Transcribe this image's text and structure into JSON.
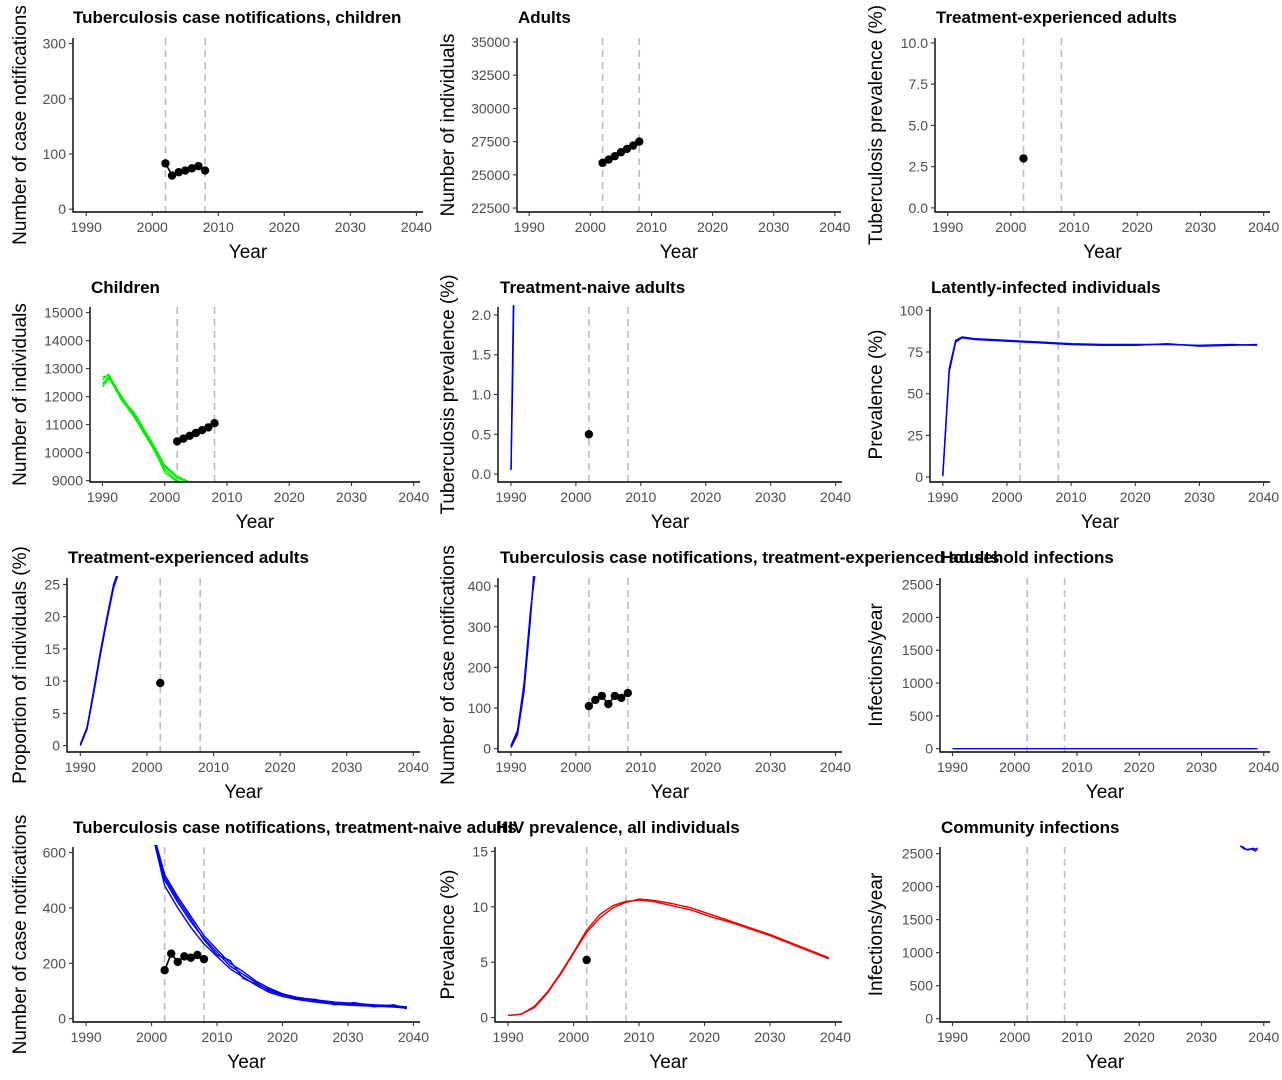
{
  "chart_data": [
    {
      "id": "p1",
      "type": "line",
      "title": "Tuberculosis case notifications, children",
      "xlabel": "Year",
      "ylabel": "Number of case notifications",
      "xlim": [
        1988,
        2041
      ],
      "ylim": [
        -5,
        310
      ],
      "xticks": [
        1990,
        2000,
        2010,
        2020,
        2030,
        2040
      ],
      "yticks": [
        0,
        100,
        200,
        300
      ],
      "vlines": [
        2002,
        2008
      ],
      "series": [],
      "observed": {
        "x": [
          2002,
          2003,
          2004,
          2005,
          2006,
          2007,
          2008
        ],
        "y": [
          83,
          61,
          67,
          70,
          74,
          78,
          70
        ]
      }
    },
    {
      "id": "p2",
      "type": "line",
      "title": "Adults",
      "xlabel": "Year",
      "ylabel": "Number of individuals",
      "xlim": [
        1988,
        2041
      ],
      "ylim": [
        22200,
        35300
      ],
      "xticks": [
        1990,
        2000,
        2010,
        2020,
        2030,
        2040
      ],
      "yticks": [
        22500,
        25000,
        27500,
        30000,
        32500,
        35000
      ],
      "vlines": [
        2002,
        2008
      ],
      "series": [],
      "observed": {
        "x": [
          2002,
          2003,
          2004,
          2005,
          2006,
          2007,
          2008
        ],
        "y": [
          25900,
          26150,
          26400,
          26700,
          26950,
          27200,
          27500
        ]
      }
    },
    {
      "id": "p3",
      "type": "line",
      "title": "Treatment-experienced adults",
      "xlabel": "Year",
      "ylabel": "Tuberculosis prevalence (%)",
      "xlim": [
        1988,
        2041
      ],
      "ylim": [
        -0.25,
        10.3
      ],
      "xticks": [
        1990,
        2000,
        2010,
        2020,
        2030,
        2040
      ],
      "yticks": [
        0.0,
        2.5,
        5.0,
        7.5,
        10.0
      ],
      "ytick_labels": [
        "0.0",
        "2.5",
        "5.0",
        "7.5",
        "10.0"
      ],
      "vlines": [
        2002,
        2008
      ],
      "series": [],
      "observed": {
        "x": [
          2002
        ],
        "y": [
          3.0
        ]
      }
    },
    {
      "id": "p4",
      "type": "line",
      "title": "Children",
      "xlabel": "Year",
      "ylabel": "Number of individuals",
      "xlim": [
        1988,
        2041
      ],
      "ylim": [
        8950,
        15200
      ],
      "xticks": [
        1990,
        2000,
        2010,
        2020,
        2030,
        2040
      ],
      "yticks": [
        9000,
        10000,
        11000,
        12000,
        13000,
        14000,
        15000
      ],
      "vlines": [
        2002,
        2008
      ],
      "series_color": "#00ee00",
      "series": [
        {
          "x": [
            1990,
            1991,
            1993,
            1995,
            1998,
            2000,
            2002,
            2004
          ],
          "y": [
            12600,
            12800,
            12000,
            11400,
            10300,
            9500,
            9100,
            8900
          ]
        },
        {
          "x": [
            1990,
            1991,
            1993,
            1995,
            1998,
            2000,
            2002,
            2004
          ],
          "y": [
            12450,
            12700,
            11900,
            11300,
            10200,
            9400,
            9000,
            8850
          ]
        },
        {
          "x": [
            1990,
            1991,
            1993,
            1995,
            1998,
            2000,
            2002,
            2004
          ],
          "y": [
            12700,
            12750,
            11950,
            11450,
            10350,
            9550,
            9150,
            8950
          ]
        },
        {
          "x": [
            1990,
            1991,
            1993,
            1995,
            1998,
            2000,
            2002,
            2004
          ],
          "y": [
            12350,
            12650,
            12050,
            11350,
            10250,
            9300,
            8950,
            8850
          ]
        }
      ],
      "observed": {
        "x": [
          2002,
          2003,
          2004,
          2005,
          2006,
          2007,
          2008
        ],
        "y": [
          10400,
          10500,
          10600,
          10700,
          10800,
          10900,
          11050
        ]
      }
    },
    {
      "id": "p5",
      "type": "line",
      "title": "Treatment-naive adults",
      "xlabel": "Year",
      "ylabel": "Tuberculosis prevalence (%)",
      "xlim": [
        1988,
        2041
      ],
      "ylim": [
        -0.1,
        2.1
      ],
      "xticks": [
        1990,
        2000,
        2010,
        2020,
        2030,
        2040
      ],
      "yticks": [
        0.0,
        0.5,
        1.0,
        1.5,
        2.0
      ],
      "ytick_labels": [
        "0.0",
        "0.5",
        "1.0",
        "1.5",
        "2.0"
      ],
      "vlines": [
        2002,
        2008
      ],
      "series_color": "#0000ee",
      "series": [
        {
          "x": [
            1990,
            1990.2,
            1990.4
          ],
          "y": [
            0.05,
            1.2,
            2.3
          ]
        },
        {
          "x": [
            1990,
            1990.25,
            1990.45
          ],
          "y": [
            0.06,
            1.1,
            2.3
          ]
        }
      ],
      "observed": {
        "x": [
          2002
        ],
        "y": [
          0.5
        ]
      }
    },
    {
      "id": "p6",
      "type": "line",
      "title": "Latently-infected individuals",
      "xlabel": "Year",
      "ylabel": "Prevalence (%)",
      "xlim": [
        1988,
        2041
      ],
      "ylim": [
        -3,
        102
      ],
      "xticks": [
        1990,
        2000,
        2010,
        2020,
        2030,
        2040
      ],
      "yticks": [
        0,
        25,
        50,
        75,
        100
      ],
      "vlines": [
        2002,
        2008
      ],
      "series_color": "#0000ee",
      "series": [
        {
          "x": [
            1990,
            1991,
            1992,
            1993,
            1995,
            2000,
            2005,
            2010,
            2015,
            2020,
            2025,
            2030,
            2035,
            2039
          ],
          "y": [
            1,
            65,
            82,
            84,
            83,
            82,
            81,
            80,
            79.5,
            79.5,
            79.5,
            79,
            79.5,
            79
          ]
        },
        {
          "x": [
            1990,
            1991,
            1992,
            1993,
            1995,
            2000,
            2005,
            2010,
            2015,
            2020,
            2025,
            2030,
            2035,
            2039
          ],
          "y": [
            0.5,
            63,
            81,
            83.5,
            82.5,
            81.5,
            80.5,
            79.5,
            79,
            79,
            80,
            78.5,
            79,
            79.5
          ]
        }
      ],
      "observed": {
        "x": [],
        "y": []
      }
    },
    {
      "id": "p7",
      "type": "line",
      "title": "Treatment-experienced adults",
      "xlabel": "Year",
      "ylabel": "Proportion of individuals (%)",
      "xlim": [
        1988,
        2041
      ],
      "ylim": [
        -1,
        26
      ],
      "xticks": [
        1990,
        2000,
        2010,
        2020,
        2030,
        2040
      ],
      "yticks": [
        0,
        5,
        10,
        15,
        20,
        25
      ],
      "vlines": [
        2002,
        2008
      ],
      "series_color": "#0000ee",
      "series": [
        {
          "x": [
            1990,
            1991,
            1992,
            1993,
            1994,
            1995,
            1996
          ],
          "y": [
            0,
            2.5,
            8,
            14,
            19.5,
            24.5,
            27.5
          ]
        },
        {
          "x": [
            1990,
            1991,
            1992,
            1993,
            1994,
            1995,
            1996
          ],
          "y": [
            0.2,
            2.8,
            8.5,
            14.5,
            20,
            25,
            28
          ]
        }
      ],
      "observed": {
        "x": [
          2002
        ],
        "y": [
          9.7
        ]
      }
    },
    {
      "id": "p8",
      "type": "line",
      "title": "Tuberculosis case notifications, treatment-experienced adults",
      "xlabel": "Year",
      "ylabel": "Number of case notifications",
      "xlim": [
        1988,
        2041
      ],
      "ylim": [
        -8,
        420
      ],
      "xticks": [
        1990,
        2000,
        2010,
        2020,
        2030,
        2040
      ],
      "yticks": [
        0,
        100,
        200,
        300,
        400
      ],
      "vlines": [
        2002,
        2008
      ],
      "series_color": "#0000ee",
      "series": [
        {
          "x": [
            1990,
            1991,
            1992,
            1993,
            1993.6
          ],
          "y": [
            5,
            40,
            150,
            330,
            430
          ]
        },
        {
          "x": [
            1990,
            1991,
            1992,
            1993,
            1993.7
          ],
          "y": [
            8,
            45,
            160,
            340,
            430
          ]
        },
        {
          "x": [
            1990,
            1991,
            1992,
            1993,
            1993.5
          ],
          "y": [
            3,
            35,
            140,
            320,
            430
          ]
        }
      ],
      "observed": {
        "x": [
          2002,
          2003,
          2004,
          2005,
          2006,
          2007,
          2008
        ],
        "y": [
          105,
          120,
          130,
          110,
          130,
          125,
          137
        ]
      }
    },
    {
      "id": "p9",
      "type": "line",
      "title": "Household infections",
      "xlabel": "Year",
      "ylabel": "Infections/year",
      "xlim": [
        1988,
        2041
      ],
      "ylim": [
        -50,
        2600
      ],
      "xticks": [
        1990,
        2000,
        2010,
        2020,
        2030,
        2040
      ],
      "yticks": [
        0,
        500,
        1000,
        1500,
        2000,
        2500
      ],
      "vlines": [
        2002,
        2008
      ],
      "series_color": "#0000ee",
      "series": [
        {
          "x": [
            1990,
            2039
          ],
          "y": [
            0,
            0
          ]
        }
      ],
      "observed": {
        "x": [],
        "y": []
      }
    },
    {
      "id": "p10",
      "type": "line",
      "title": "Tuberculosis case notifications, treatment-naive adults",
      "xlabel": "Year",
      "ylabel": "Number of case notifications",
      "xlim": [
        1988,
        2041
      ],
      "ylim": [
        -12,
        620
      ],
      "xticks": [
        1990,
        2000,
        2010,
        2020,
        2030,
        2040
      ],
      "yticks": [
        0,
        200,
        400,
        600
      ],
      "vlines": [
        2002,
        2008
      ],
      "series_color": "#0000ee",
      "series": [
        {
          "x": [
            2000.5,
            2002,
            2004,
            2006,
            2008,
            2010,
            2012,
            2014,
            2016,
            2018,
            2020,
            2022,
            2025,
            2028,
            2031,
            2034,
            2037,
            2039
          ],
          "y": [
            640,
            500,
            420,
            350,
            290,
            240,
            190,
            160,
            130,
            100,
            85,
            75,
            65,
            55,
            50,
            48,
            45,
            40
          ]
        },
        {
          "x": [
            2000.5,
            2002,
            2004,
            2006,
            2008,
            2010,
            2012,
            2014,
            2016,
            2018,
            2020,
            2022,
            2025,
            2028,
            2031,
            2034,
            2037,
            2039
          ],
          "y": [
            650,
            520,
            440,
            370,
            300,
            250,
            200,
            170,
            135,
            110,
            90,
            78,
            68,
            60,
            55,
            50,
            47,
            42
          ]
        },
        {
          "x": [
            2000.5,
            2002,
            2004,
            2006,
            2008,
            2010,
            2012,
            2014,
            2016,
            2018,
            2020,
            2022,
            2025,
            2028,
            2031,
            2034,
            2037,
            2039
          ],
          "y": [
            630,
            480,
            400,
            330,
            270,
            225,
            180,
            150,
            120,
            95,
            80,
            70,
            60,
            52,
            48,
            45,
            42,
            38
          ]
        },
        {
          "x": [
            2000.5,
            2002,
            2004,
            2006,
            2008,
            2010,
            2012,
            2014,
            2016,
            2018,
            2020,
            2022,
            2025,
            2028,
            2031,
            2034,
            2037,
            2039
          ],
          "y": [
            645,
            510,
            430,
            360,
            285,
            230,
            210,
            145,
            125,
            105,
            88,
            72,
            70,
            50,
            58,
            43,
            50,
            36
          ]
        }
      ],
      "observed": {
        "x": [
          2002,
          2003,
          2004,
          2005,
          2006,
          2007,
          2008
        ],
        "y": [
          175,
          235,
          205,
          225,
          220,
          230,
          215
        ]
      }
    },
    {
      "id": "p11",
      "type": "line",
      "title": "HIV prevalence, all individuals",
      "xlabel": "Year",
      "ylabel": "Prevalence (%)",
      "xlim": [
        1988,
        2041
      ],
      "ylim": [
        -0.4,
        15.4
      ],
      "xticks": [
        1990,
        2000,
        2010,
        2020,
        2030,
        2040
      ],
      "yticks": [
        0,
        5,
        10,
        15
      ],
      "vlines": [
        2002,
        2008
      ],
      "series_color": "#ee0000",
      "series": [
        {
          "x": [
            1990,
            1992,
            1994,
            1996,
            1998,
            2000,
            2002,
            2004,
            2006,
            2008,
            2010,
            2012,
            2015,
            2018,
            2021,
            2024,
            2027,
            2030,
            2033,
            2036,
            2039
          ],
          "y": [
            0.2,
            0.3,
            0.9,
            2.2,
            3.9,
            5.8,
            7.7,
            9.0,
            9.9,
            10.4,
            10.7,
            10.6,
            10.3,
            9.9,
            9.3,
            8.7,
            8.1,
            7.5,
            6.8,
            6.1,
            5.4
          ]
        },
        {
          "x": [
            1990,
            1992,
            1994,
            1996,
            1998,
            2000,
            2002,
            2004,
            2006,
            2008,
            2010,
            2012,
            2015,
            2018,
            2021,
            2024,
            2027,
            2030,
            2033,
            2036,
            2039
          ],
          "y": [
            0.2,
            0.3,
            1.0,
            2.3,
            4.0,
            5.9,
            7.9,
            9.3,
            10.1,
            10.5,
            10.6,
            10.5,
            10.1,
            9.7,
            9.1,
            8.6,
            8.0,
            7.4,
            6.7,
            6.0,
            5.3
          ]
        }
      ],
      "observed": {
        "x": [
          2002
        ],
        "y": [
          5.2
        ]
      }
    },
    {
      "id": "p12",
      "type": "line",
      "title": "Community infections",
      "xlabel": "Year",
      "ylabel": "Infections/year",
      "xlim": [
        1988,
        2041
      ],
      "ylim": [
        -50,
        2600
      ],
      "xticks": [
        1990,
        2000,
        2010,
        2020,
        2030,
        2040
      ],
      "yticks": [
        0,
        500,
        1000,
        1500,
        2000,
        2500
      ],
      "vlines": [
        2002,
        2008
      ],
      "series_color": "#0000ee",
      "series": [
        {
          "x": [
            2036.2,
            2036.8,
            2037.5,
            2038.2,
            2039
          ],
          "y": [
            2620,
            2575,
            2555,
            2580,
            2560
          ]
        },
        {
          "x": [
            2036.5,
            2037.2,
            2038,
            2038.7,
            2039
          ],
          "y": [
            2610,
            2560,
            2570,
            2540,
            2590
          ]
        }
      ],
      "observed": {
        "x": [],
        "y": []
      }
    }
  ]
}
